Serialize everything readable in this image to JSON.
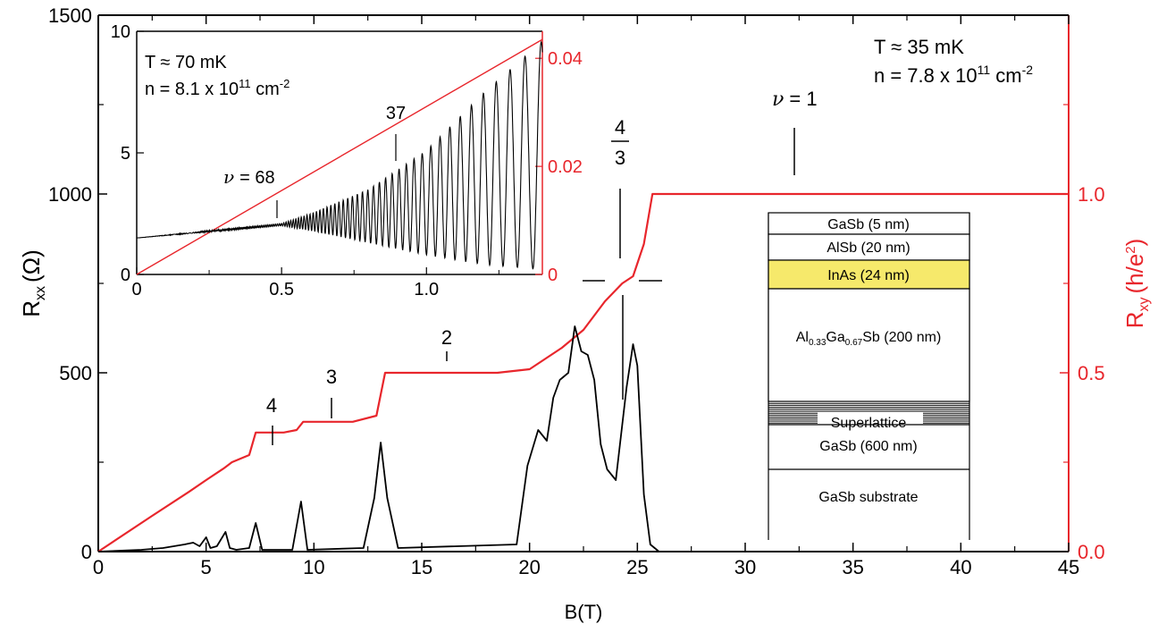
{
  "chart_data": [
    {
      "type": "line",
      "xlabel": "B(T)",
      "ylabel": "R",
      "ylabel_sub": "xx",
      "ylabel_unit": "(Ω)",
      "y2label": "R",
      "y2label_sub": "xy",
      "y2label_unit": "(h/e",
      "y2label_sup": "2",
      "y2label_close": ")",
      "xlim": [
        0,
        45
      ],
      "ylim": [
        0,
        1500
      ],
      "y2lim": [
        0,
        1.5
      ],
      "x_ticks": [
        "0",
        "5",
        "10",
        "15",
        "20",
        "25",
        "30",
        "35",
        "40",
        "45"
      ],
      "y_ticks": [
        "0",
        "500",
        "1000",
        "1500"
      ],
      "y2_ticks": [
        "0.0",
        "0.5",
        "1.0"
      ],
      "annotations": {
        "temp": "T ≈ 35 mK",
        "density_prefix": "n = 7.8 x 10",
        "density_exp": "11",
        "density_unit": " cm",
        "density_unit_exp": "-2",
        "nu1": "= 1",
        "nu_symbol": "ν",
        "nu2": "2",
        "nu3": "3",
        "nu4": "4",
        "frac_num": "4",
        "frac_den": "3"
      },
      "layers": {
        "l1": "GaSb (5 nm)",
        "l2": "AlSb (20 nm)",
        "l3": "InAs (24 nm)",
        "l4_a": "Al",
        "l4_a_sub": "0.33",
        "l4_b": "Ga",
        "l4_b_sub": "0.67",
        "l4_c": "Sb (200 nm)",
        "l5": "Superlattice",
        "l6": "GaSb (600 nm)",
        "l7": "GaSb substrate"
      },
      "series": [
        {
          "axis": "right",
          "color": "#e8262c",
          "x": [
            0,
            2.5,
            4.2,
            5.0,
            5.8,
            6.2,
            7.0,
            7.3,
            8.6,
            9.2,
            9.5,
            11.8,
            12.9,
            13.3,
            18.5,
            20.0,
            21.5,
            22.5,
            23.5,
            24.3,
            24.8,
            25.3,
            25.7,
            45
          ],
          "y": [
            0,
            0.1,
            0.167,
            0.2,
            0.232,
            0.25,
            0.27,
            0.333,
            0.333,
            0.34,
            0.363,
            0.363,
            0.38,
            0.5,
            0.5,
            0.51,
            0.57,
            0.62,
            0.7,
            0.75,
            0.77,
            0.86,
            1.0,
            1.0
          ]
        },
        {
          "axis": "left",
          "color": "#000000",
          "x": [
            0,
            2,
            3,
            3.5,
            4.0,
            4.4,
            4.7,
            5.0,
            5.2,
            5.5,
            5.9,
            6.1,
            6.4,
            7.0,
            7.3,
            7.6,
            9.0,
            9.4,
            9.7,
            12.3,
            12.8,
            13.1,
            13.4,
            13.9,
            19.4,
            19.9,
            20.4,
            20.8,
            21.1,
            21.4,
            21.6,
            21.8,
            22.1,
            22.4,
            22.7,
            23.0,
            23.3,
            23.6,
            24.0,
            24.5,
            24.8,
            25.0,
            25.3,
            25.6,
            26.0,
            45
          ],
          "y": [
            0,
            5,
            10,
            15,
            20,
            25,
            15,
            40,
            10,
            15,
            55,
            10,
            5,
            10,
            80,
            5,
            5,
            140,
            5,
            10,
            150,
            305,
            150,
            10,
            20,
            240,
            340,
            310,
            430,
            480,
            490,
            500,
            630,
            560,
            550,
            480,
            300,
            230,
            200,
            460,
            580,
            520,
            160,
            20,
            0,
            0
          ]
        }
      ]
    },
    {
      "type": "line",
      "xlim": [
        0,
        1.4
      ],
      "ylim": [
        0,
        10
      ],
      "y2lim": [
        0,
        0.045
      ],
      "x_ticks": [
        "0",
        "0.5",
        "1.0"
      ],
      "y_ticks": [
        "0",
        "5",
        "10"
      ],
      "y2_ticks": [
        "0",
        "0.02",
        "0.04"
      ],
      "annotations": {
        "temp": "T ≈ 70 mK",
        "density_prefix": "n = 8.1 x 10",
        "density_exp": "11",
        "density_unit": " cm",
        "density_unit_exp": "-2",
        "nu68": "= 68",
        "nu_symbol": "ν",
        "n37": "37"
      },
      "series": [
        {
          "axis": "right",
          "color": "#e8262c",
          "x": [
            0,
            1.4
          ],
          "y": [
            0,
            0.0435
          ]
        },
        {
          "axis": "left",
          "color": "#000000",
          "envelope": {
            "x": [
              0,
              0.5,
              0.6,
              0.8,
              1.0,
              1.2,
              1.4
            ],
            "top": [
              1.5,
              2.1,
              2.5,
              3.5,
              5.1,
              7.5,
              9.6
            ],
            "bottom": [
              1.5,
              2.0,
              1.8,
              1.3,
              0.8,
              0.4,
              0.2
            ]
          }
        }
      ]
    }
  ]
}
